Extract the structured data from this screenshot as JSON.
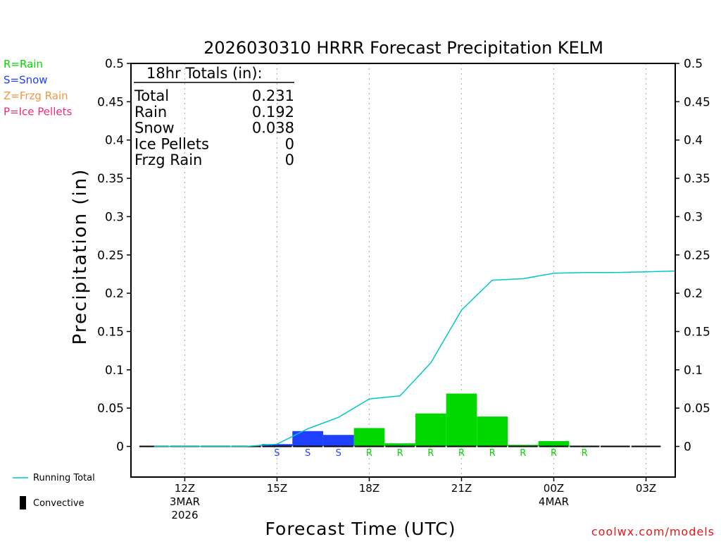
{
  "chart_data": {
    "type": "bar",
    "title": "2026030310 HRRR Forecast Precipitation KELM",
    "xlabel": "Forecast Time (UTC)",
    "ylabel": "Precipitation (in)",
    "ylim": [
      -0.04,
      0.5
    ],
    "yticks": [
      "0.5",
      "0.45",
      "0.4",
      "0.35",
      "0.3",
      "0.25",
      "0.2",
      "0.15",
      "0.1",
      "0.05",
      "0"
    ],
    "ytick_values": [
      0.5,
      0.45,
      0.4,
      0.35,
      0.3,
      0.25,
      0.2,
      0.15,
      0.1,
      0.05,
      0
    ],
    "xlim_hours": [
      10.25,
      27.95
    ],
    "x_ticks": [
      {
        "hour": 12,
        "lines": [
          "12Z",
          "3MAR",
          "2026"
        ]
      },
      {
        "hour": 15,
        "lines": [
          "15Z"
        ]
      },
      {
        "hour": 18,
        "lines": [
          "18Z"
        ]
      },
      {
        "hour": 21,
        "lines": [
          "21Z"
        ]
      },
      {
        "hour": 24,
        "lines": [
          "00Z",
          "4MAR"
        ]
      },
      {
        "hour": 27,
        "lines": [
          "03Z"
        ]
      }
    ],
    "hourly_bars": [
      {
        "hour": 11,
        "value": 0.0,
        "type": ""
      },
      {
        "hour": 12,
        "value": 0.0,
        "type": ""
      },
      {
        "hour": 13,
        "value": 0.0,
        "type": ""
      },
      {
        "hour": 14,
        "value": 0.0,
        "type": ""
      },
      {
        "hour": 15,
        "value": 0.003,
        "type": "S"
      },
      {
        "hour": 16,
        "value": 0.02,
        "type": "S"
      },
      {
        "hour": 17,
        "value": 0.015,
        "type": "S"
      },
      {
        "hour": 18,
        "value": 0.024,
        "type": "R"
      },
      {
        "hour": 19,
        "value": 0.004,
        "type": "R"
      },
      {
        "hour": 20,
        "value": 0.043,
        "type": "R"
      },
      {
        "hour": 21,
        "value": 0.069,
        "type": "R"
      },
      {
        "hour": 22,
        "value": 0.039,
        "type": "R"
      },
      {
        "hour": 23,
        "value": 0.002,
        "type": "R"
      },
      {
        "hour": 24,
        "value": 0.007,
        "type": "R"
      },
      {
        "hour": 25,
        "value": 0.001,
        "type": "R"
      },
      {
        "hour": 26,
        "value": 0.0,
        "type": ""
      },
      {
        "hour": 27,
        "value": 0.0,
        "type": ""
      }
    ],
    "running_total": {
      "name": "Running Total",
      "color": "#00c8c8",
      "points": [
        [
          11,
          0.0
        ],
        [
          12,
          0.0
        ],
        [
          13,
          0.0
        ],
        [
          14,
          0.0
        ],
        [
          15,
          0.003
        ],
        [
          16,
          0.023
        ],
        [
          17,
          0.038
        ],
        [
          18,
          0.062
        ],
        [
          19,
          0.066
        ],
        [
          20,
          0.109
        ],
        [
          21,
          0.178
        ],
        [
          22,
          0.217
        ],
        [
          23,
          0.219
        ],
        [
          24,
          0.226
        ],
        [
          25,
          0.227
        ],
        [
          26,
          0.227
        ],
        [
          27,
          0.228
        ],
        [
          27.95,
          0.229
        ]
      ]
    },
    "colors": {
      "R": "#00d800",
      "S": "#2040ff",
      "Z": "#f09640",
      "P": "#f0287a",
      "zero": "#000000"
    },
    "precip_type_legend": [
      {
        "text": "R=Rain",
        "color": "#00d800"
      },
      {
        "text": "S=Snow",
        "color": "#2040ff"
      },
      {
        "text": "Z=Frzg Rain",
        "color": "#f09640"
      },
      {
        "text": "P=Ice Pellets",
        "color": "#f0287a"
      }
    ],
    "totals_box": {
      "header": "18hr Totals (in):",
      "rows": [
        {
          "label": "Total",
          "value": "0.231"
        },
        {
          "label": "Rain",
          "value": "0.192"
        },
        {
          "label": "Snow",
          "value": "0.038"
        },
        {
          "label": "Ice Pellets",
          "value": "0"
        },
        {
          "label": "Frzg Rain",
          "value": "0"
        }
      ]
    },
    "side_legend": {
      "running_total": "Running Total",
      "convective": "Convective"
    },
    "credit": "coolwx.com/models"
  }
}
